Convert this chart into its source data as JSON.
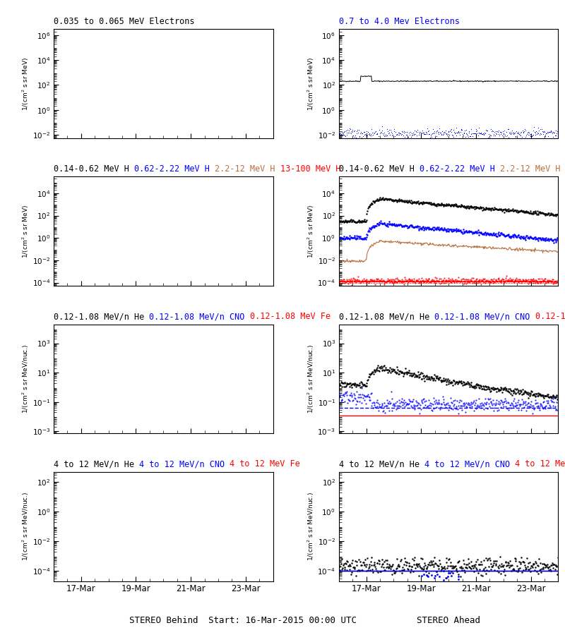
{
  "title_row1_left": "0.035 to 0.065 MeV Electrons",
  "title_row1_right": "0.7 to 4.0 Mev Electrons",
  "title_row1_right_color": "blue",
  "titles_row2": [
    "0.14-0.62 MeV H",
    "0.62-2.22 MeV H",
    "2.2-12 MeV H",
    "13-100 MeV H"
  ],
  "titles_row2_colors": [
    "black",
    "blue",
    "#b87040",
    "red"
  ],
  "titles_row3": [
    "0.12-1.08 MeV/n He",
    "0.12-1.08 MeV/n CNO",
    "0.12-1.08 MeV Fe"
  ],
  "titles_row3_colors": [
    "black",
    "blue",
    "red"
  ],
  "titles_row4": [
    "4 to 12 MeV/n He",
    "4 to 12 MeV/n CNO",
    "4 to 12 MeV Fe"
  ],
  "titles_row4_colors": [
    "black",
    "blue",
    "red"
  ],
  "xlabel_left": "STEREO Behind",
  "xlabel_right": "STEREO Ahead",
  "xlabel_center": "Start: 16-Mar-2015 00:00 UTC",
  "xtick_labels": [
    "17-Mar",
    "19-Mar",
    "21-Mar",
    "23-Mar"
  ],
  "ylabel_mev": "1/(cm2 s sr MeV)",
  "ylabel_nuc": "1/(cm2 s sr MeV/nuc.)",
  "seed": 42,
  "n_points": 400,
  "t_max": 8.0
}
